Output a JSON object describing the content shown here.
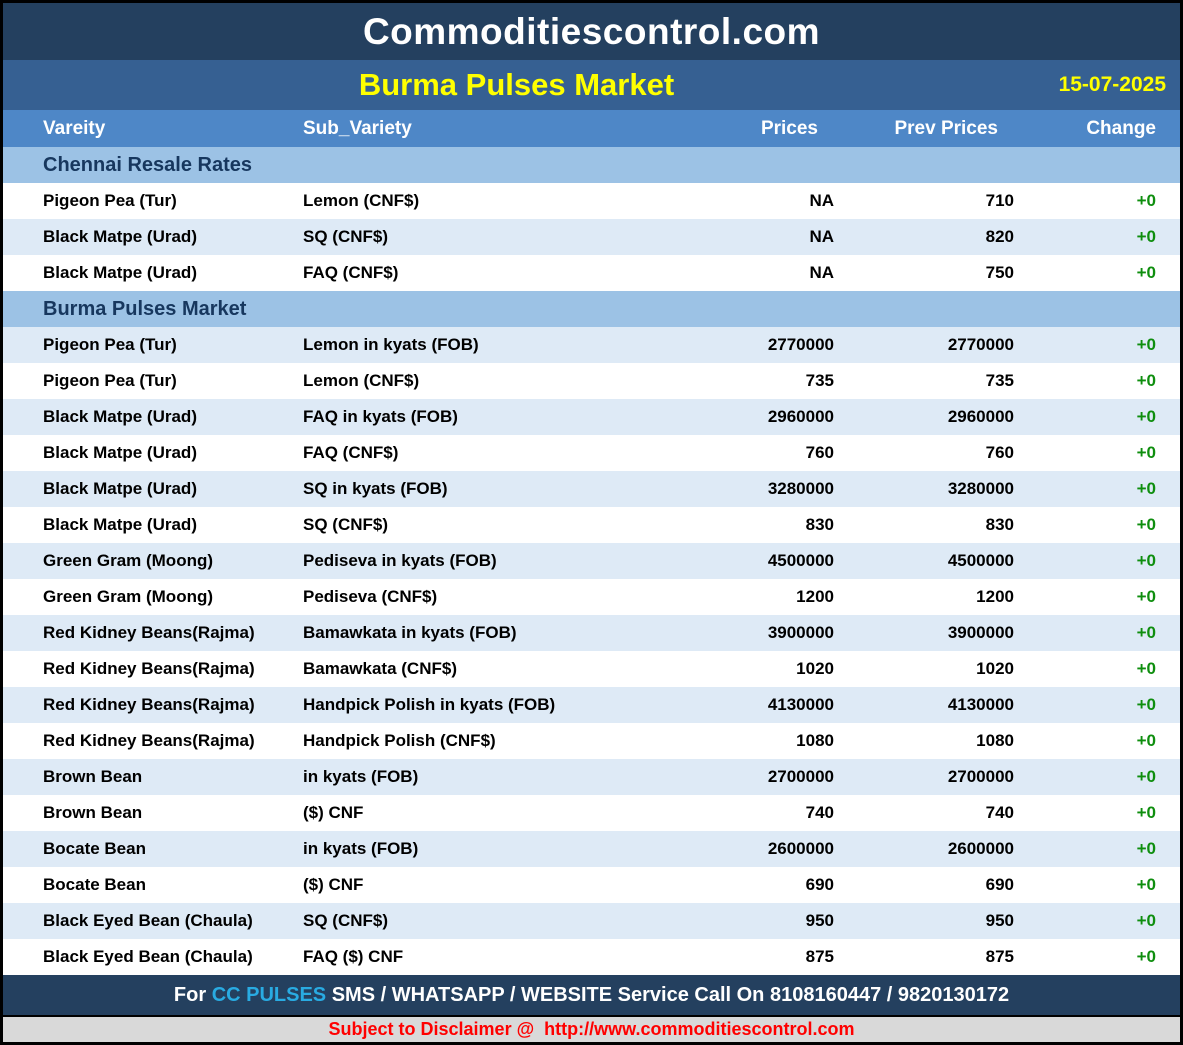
{
  "site": {
    "title": "Commoditiescontrol.com"
  },
  "report": {
    "title": "Burma Pulses Market",
    "date": "15-07-2025"
  },
  "table": {
    "columns": [
      "Vareity",
      "Sub_Variety",
      "Prices",
      "Prev Prices",
      "Change"
    ],
    "sections": [
      {
        "name": "Chennai Resale Rates",
        "rows": [
          [
            "Pigeon Pea (Tur)",
            "Lemon (CNF$)",
            "NA",
            "710",
            "+0"
          ],
          [
            "Black Matpe (Urad)",
            "SQ (CNF$)",
            "NA",
            "820",
            "+0"
          ],
          [
            "Black Matpe (Urad)",
            "FAQ (CNF$)",
            "NA",
            "750",
            "+0"
          ]
        ]
      },
      {
        "name": "Burma Pulses Market",
        "rows": [
          [
            "Pigeon Pea (Tur)",
            "Lemon in kyats (FOB)",
            "2770000",
            "2770000",
            "+0"
          ],
          [
            "Pigeon Pea (Tur)",
            "Lemon (CNF$)",
            "735",
            "735",
            "+0"
          ],
          [
            "Black Matpe (Urad)",
            "FAQ in kyats (FOB)",
            "2960000",
            "2960000",
            "+0"
          ],
          [
            "Black Matpe (Urad)",
            "FAQ (CNF$)",
            "760",
            "760",
            "+0"
          ],
          [
            "Black Matpe (Urad)",
            "SQ in kyats (FOB)",
            "3280000",
            "3280000",
            "+0"
          ],
          [
            "Black Matpe (Urad)",
            "SQ (CNF$)",
            "830",
            "830",
            "+0"
          ],
          [
            "Green Gram (Moong)",
            "Pediseva in kyats (FOB)",
            "4500000",
            "4500000",
            "+0"
          ],
          [
            "Green Gram (Moong)",
            "Pediseva (CNF$)",
            "1200",
            "1200",
            "+0"
          ],
          [
            "Red Kidney Beans(Rajma)",
            "Bamawkata in kyats (FOB)",
            "3900000",
            "3900000",
            "+0"
          ],
          [
            "Red Kidney Beans(Rajma)",
            "Bamawkata (CNF$)",
            "1020",
            "1020",
            "+0"
          ],
          [
            "Red Kidney Beans(Rajma)",
            "Handpick Polish in kyats (FOB)",
            "4130000",
            "4130000",
            "+0"
          ],
          [
            "Red Kidney Beans(Rajma)",
            "Handpick Polish (CNF$)",
            "1080",
            "1080",
            "+0"
          ],
          [
            "Brown Bean",
            "in kyats (FOB)",
            "2700000",
            "2700000",
            "+0"
          ],
          [
            "Brown Bean",
            "($) CNF",
            "740",
            "740",
            "+0"
          ],
          [
            "Bocate Bean",
            "in kyats (FOB)",
            "2600000",
            "2600000",
            "+0"
          ],
          [
            "Bocate Bean",
            "($) CNF",
            "690",
            "690",
            "+0"
          ],
          [
            "Black Eyed Bean (Chaula)",
            "SQ (CNF$)",
            "950",
            "950",
            "+0"
          ],
          [
            "Black Eyed Bean (Chaula)",
            "FAQ ($) CNF",
            "875",
            "875",
            "+0"
          ]
        ]
      }
    ]
  },
  "footer": {
    "service_prefix": "For ",
    "service_brand": "CC PULSES",
    "service_suffix": " SMS / WHATSAPP / WEBSITE Service Call On 8108160447 / 9820130172",
    "disclaimer_prefix": "Subject to Disclaimer @  ",
    "disclaimer_url": "http://www.commoditiescontrol.com"
  },
  "colors": {
    "header_navy": "#24405F",
    "title_bar_blue": "#366092",
    "column_header_blue": "#4E87C7",
    "section_row_blue": "#9CC2E5",
    "alt_row_blue": "#DEEAF6",
    "section_text_navy": "#17375E",
    "title_yellow": "#FFFF00",
    "change_green": "#0E8E0E",
    "brand_cyan": "#29ABE2",
    "disclaimer_red": "#FF0000",
    "disclaimer_bg": "#D9D9D9"
  }
}
